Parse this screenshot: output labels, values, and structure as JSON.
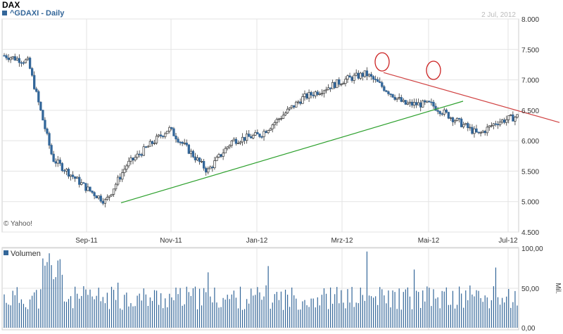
{
  "header": {
    "title": "DAX",
    "subtitle": "^GDAXI - Daily",
    "date": "2 Jul, 2012",
    "watermark": "© Yahoo!"
  },
  "volume_panel": {
    "label": "Volumen",
    "unit": "Mil.",
    "ticks": [
      "100,00",
      "50,00",
      "0,00"
    ]
  },
  "colors": {
    "down_candle": "#336699",
    "up_candle": "#ffffff",
    "grid": "#e3e3e3",
    "trend_support": "#2ca02c",
    "trend_resistance": "#d04040",
    "circle": "#cc2222",
    "text": "#333333"
  },
  "chart_data": [
    {
      "type": "candlestick",
      "title": "^GDAXI - Daily",
      "x_ticks": [
        "Sep-11",
        "Nov-11",
        "Jan-12",
        "Mrz-12",
        "Mai-12",
        "Jul-12"
      ],
      "y_ticks": [
        "8.000",
        "7.500",
        "7.000",
        "6.500",
        "6.000",
        "5.500",
        "5.000",
        "4.500"
      ],
      "ylim": [
        4500,
        8000
      ],
      "grid": true,
      "price_path": [
        {
          "x": "Jul-11",
          "close": 7400
        },
        {
          "x": "early Aug-11",
          "close": 7300
        },
        {
          "x": "mid Aug-11",
          "close": 5700
        },
        {
          "x": "late Aug-11",
          "close": 5500
        },
        {
          "x": "Sep-11",
          "close": 5200
        },
        {
          "x": "late Sep-11",
          "close": 5000
        },
        {
          "x": "Oct-11",
          "close": 5600
        },
        {
          "x": "Nov-11",
          "close": 6200
        },
        {
          "x": "late Nov-11",
          "close": 5500
        },
        {
          "x": "Dec-11",
          "close": 6000
        },
        {
          "x": "Jan-12",
          "close": 6100
        },
        {
          "x": "Feb-12",
          "close": 6700
        },
        {
          "x": "Mrz-12",
          "close": 7000
        },
        {
          "x": "late Mrz-12",
          "close": 7100
        },
        {
          "x": "Apr-12",
          "close": 6600
        },
        {
          "x": "Mai-12",
          "close": 6600
        },
        {
          "x": "late Mai-12",
          "close": 6100
        },
        {
          "x": "Jun-12",
          "close": 6300
        },
        {
          "x": "Jul-12",
          "close": 6400
        }
      ],
      "annotations": {
        "support_line": [
          {
            "x": "late Sep-11",
            "y": 4980
          },
          {
            "x": "Mai-12",
            "y": 6650
          }
        ],
        "resistance_line": [
          {
            "x": "late Mrz-12",
            "y": 7120
          },
          {
            "x": "Jul-12",
            "y": 6300
          }
        ],
        "circles": [
          {
            "x": "late Mrz-12",
            "y": 7100
          },
          {
            "x": "Mai-12",
            "y": 6950
          }
        ]
      }
    },
    {
      "type": "bar",
      "title": "Volumen",
      "ylabel": "Mil.",
      "y_ticks": [
        "100,00",
        "50,00",
        "0,00"
      ],
      "ylim": [
        0,
        100
      ]
    }
  ]
}
